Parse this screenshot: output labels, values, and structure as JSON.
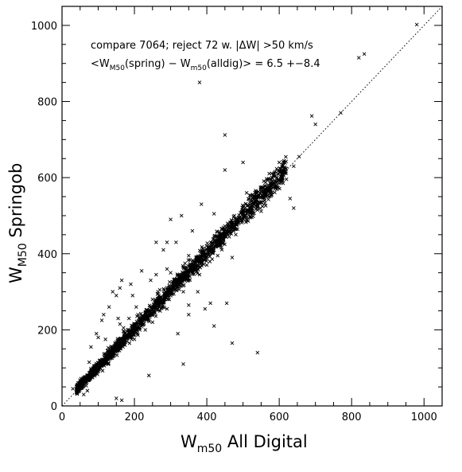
{
  "chart_data": {
    "type": "scatter",
    "title": "",
    "annotations": {
      "line1": "compare 7064; reject 72 w. |ΔW| >50 km/s",
      "line2_prefix": "<W",
      "line2_sub1": "M50",
      "line2_mid": "(spring) − W",
      "line2_sub2": "m50",
      "line2_suffix": "(alldig)> = 6.5 +−8.4"
    },
    "xlabel": {
      "main": "W",
      "sub": "m50",
      "rest": " All Digital"
    },
    "ylabel": {
      "main": "W",
      "sub": "M50",
      "rest": " Springob"
    },
    "xlim": [
      0,
      1050
    ],
    "ylim": [
      0,
      1050
    ],
    "x_ticks": [
      0,
      200,
      400,
      600,
      800,
      1000
    ],
    "y_ticks": [
      0,
      200,
      400,
      600,
      800,
      1000
    ],
    "x_tick_labels": [
      "0",
      "200",
      "400",
      "600",
      "800",
      "1000"
    ],
    "y_tick_labels": [
      "0",
      "200",
      "400",
      "600",
      "800",
      "1000"
    ],
    "reference_line": {
      "style": "dotted",
      "from": [
        0,
        0
      ],
      "to": [
        1050,
        1050
      ]
    },
    "marker": "x",
    "n_points_shown": 7064,
    "points_outliers": [
      [
        380,
        850
      ],
      [
        450,
        712
      ],
      [
        980,
        1002
      ],
      [
        820,
        915
      ],
      [
        835,
        925
      ],
      [
        770,
        770
      ],
      [
        700,
        740
      ],
      [
        690,
        762
      ],
      [
        655,
        655
      ],
      [
        640,
        520
      ],
      [
        630,
        545
      ],
      [
        595,
        575
      ],
      [
        555,
        552
      ],
      [
        540,
        515
      ],
      [
        540,
        140
      ],
      [
        470,
        165
      ],
      [
        455,
        270
      ],
      [
        440,
        430
      ],
      [
        410,
        270
      ],
      [
        400,
        370
      ],
      [
        375,
        300
      ],
      [
        360,
        460
      ],
      [
        350,
        265
      ],
      [
        335,
        110
      ],
      [
        330,
        500
      ],
      [
        315,
        430
      ],
      [
        300,
        490
      ],
      [
        290,
        430
      ],
      [
        280,
        410
      ],
      [
        265,
        300
      ],
      [
        260,
        430
      ],
      [
        255,
        260
      ],
      [
        250,
        280
      ],
      [
        240,
        80
      ],
      [
        220,
        355
      ],
      [
        215,
        200
      ],
      [
        210,
        240
      ],
      [
        195,
        290
      ],
      [
        190,
        320
      ],
      [
        165,
        330
      ],
      [
        160,
        310
      ],
      [
        150,
        290
      ],
      [
        140,
        300
      ],
      [
        130,
        260
      ],
      [
        115,
        240
      ],
      [
        110,
        225
      ],
      [
        100,
        180
      ],
      [
        95,
        190
      ],
      [
        90,
        105
      ],
      [
        80,
        155
      ],
      [
        70,
        40
      ],
      [
        60,
        30
      ],
      [
        40,
        50
      ],
      [
        30,
        45
      ],
      [
        150,
        20
      ],
      [
        165,
        15
      ],
      [
        230,
        245
      ],
      [
        245,
        330
      ],
      [
        320,
        190
      ],
      [
        350,
        240
      ],
      [
        395,
        255
      ],
      [
        420,
        210
      ],
      [
        470,
        390
      ],
      [
        510,
        560
      ],
      [
        580,
        600
      ],
      [
        600,
        640
      ],
      [
        450,
        620
      ],
      [
        385,
        530
      ],
      [
        350,
        395
      ],
      [
        300,
        350
      ],
      [
        270,
        305
      ],
      [
        205,
        260
      ],
      [
        185,
        230
      ],
      [
        120,
        175
      ],
      [
        75,
        115
      ],
      [
        105,
        120
      ],
      [
        200,
        175
      ],
      [
        250,
        220
      ],
      [
        290,
        255
      ],
      [
        335,
        300
      ],
      [
        380,
        345
      ],
      [
        430,
        395
      ],
      [
        480,
        450
      ],
      [
        520,
        495
      ],
      [
        560,
        540
      ],
      [
        600,
        585
      ],
      [
        640,
        630
      ],
      [
        170,
        205
      ],
      [
        160,
        215
      ],
      [
        155,
        230
      ],
      [
        260,
        345
      ],
      [
        290,
        360
      ],
      [
        310,
        330
      ],
      [
        230,
        200
      ],
      [
        420,
        505
      ],
      [
        500,
        640
      ]
    ],
    "density_band": {
      "x_range": [
        40,
        620
      ],
      "slope": 1.0,
      "intercept": 3.0,
      "spread": 14
    },
    "colors": {
      "marker": "#000000",
      "axes": "#000000",
      "background": "#ffffff"
    }
  }
}
